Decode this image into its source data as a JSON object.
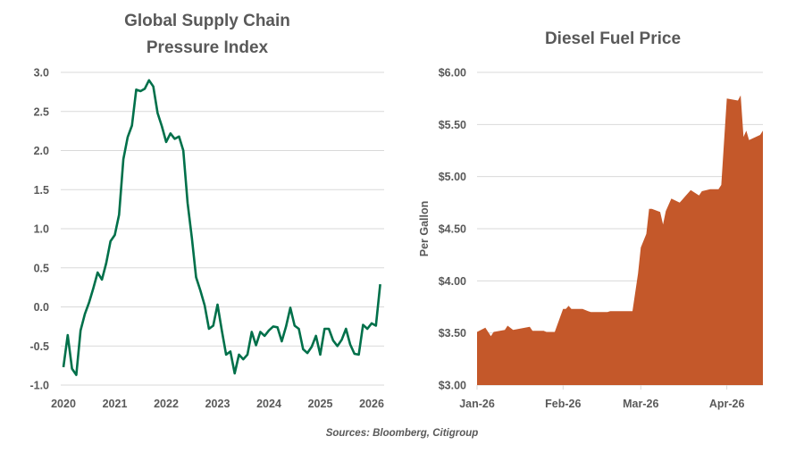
{
  "source": "Sources: Bloomberg, Citigroup",
  "colors": {
    "gscpi_line": "#00704A",
    "diesel_area": "#C4582A",
    "grid": "#D9D9D9",
    "text": "#595959"
  },
  "chart_data": [
    {
      "type": "line",
      "title_lines": [
        "Global Supply Chain",
        "Pressure Index"
      ],
      "xlabel": "",
      "ylabel": "",
      "ylim": [
        -1.0,
        3.0
      ],
      "yticks": [
        "3.0",
        "2.5",
        "2.0",
        "1.5",
        "1.0",
        "0.5",
        "0.0",
        "-0.5",
        "-1.0"
      ],
      "ytick_values": [
        3.0,
        2.5,
        2.0,
        1.5,
        1.0,
        0.5,
        0.0,
        -0.5,
        -1.0
      ],
      "xticks": [
        "2020",
        "2021",
        "2022",
        "2023",
        "2024",
        "2025",
        "2026"
      ],
      "xtick_values": [
        2020,
        2021,
        2022,
        2023,
        2024,
        2025,
        2026
      ],
      "xlim": [
        2020,
        2026.3
      ],
      "grid": "horizontal",
      "x_start": "2020-01",
      "frequency": "monthly",
      "values": [
        -0.77,
        -0.36,
        -0.79,
        -0.87,
        -0.3,
        -0.09,
        0.06,
        0.24,
        0.44,
        0.35,
        0.56,
        0.84,
        0.92,
        1.18,
        1.89,
        2.17,
        2.32,
        2.78,
        2.76,
        2.79,
        2.9,
        2.82,
        2.48,
        2.31,
        2.11,
        2.22,
        2.15,
        2.18,
        2.0,
        1.33,
        0.88,
        0.38,
        0.21,
        0.02,
        -0.28,
        -0.24,
        0.03,
        -0.3,
        -0.61,
        -0.57,
        -0.85,
        -0.61,
        -0.67,
        -0.61,
        -0.32,
        -0.49,
        -0.32,
        -0.37,
        -0.3,
        -0.25,
        -0.26,
        -0.44,
        -0.25,
        -0.01,
        -0.24,
        -0.28,
        -0.54,
        -0.59,
        -0.51,
        -0.37,
        -0.61,
        -0.28,
        -0.28,
        -0.43,
        -0.5,
        -0.42,
        -0.28,
        -0.48,
        -0.6,
        -0.61,
        -0.23,
        -0.28,
        -0.21,
        -0.24,
        0.29
      ]
    },
    {
      "type": "area",
      "title": "Diesel Fuel Price",
      "xlabel": "",
      "ylabel": "Per Gallon",
      "ylim": [
        3.0,
        6.0
      ],
      "yticks": [
        "$6.00",
        "$5.50",
        "$5.00",
        "$4.50",
        "$4.00",
        "$3.50",
        "$3.00"
      ],
      "ytick_values": [
        6.0,
        5.5,
        5.0,
        4.5,
        4.0,
        3.5,
        3.0
      ],
      "xticks": [
        "Jan-26",
        "Feb-26",
        "Mar-26",
        "Apr-26"
      ],
      "xtick_dates": [
        "2026-01-01",
        "2026-02-01",
        "2026-03-01",
        "2026-04-01"
      ],
      "xlim": [
        "2026-01-01",
        "2026-04-14"
      ],
      "grid": "horizontal",
      "x": [
        "2026-01-01",
        "2026-01-04",
        "2026-01-06",
        "2026-01-07",
        "2026-01-11",
        "2026-01-12",
        "2026-01-14",
        "2026-01-20",
        "2026-01-21",
        "2026-01-25",
        "2026-01-26",
        "2026-01-29",
        "2026-02-01",
        "2026-02-02",
        "2026-02-03",
        "2026-02-04",
        "2026-02-08",
        "2026-02-10",
        "2026-02-11",
        "2026-02-17",
        "2026-02-18",
        "2026-02-23",
        "2026-02-26",
        "2026-02-28",
        "2026-03-01",
        "2026-03-03",
        "2026-03-04",
        "2026-03-05",
        "2026-03-08",
        "2026-03-09",
        "2026-03-10",
        "2026-03-12",
        "2026-03-15",
        "2026-03-17",
        "2026-03-19",
        "2026-03-22",
        "2026-03-23",
        "2026-03-26",
        "2026-03-29",
        "2026-03-30",
        "2026-04-01",
        "2026-04-05",
        "2026-04-06",
        "2026-04-07",
        "2026-04-08",
        "2026-04-09",
        "2026-04-13",
        "2026-04-14"
      ],
      "values": [
        3.51,
        3.55,
        3.47,
        3.51,
        3.53,
        3.57,
        3.53,
        3.56,
        3.52,
        3.52,
        3.51,
        3.51,
        3.73,
        3.73,
        3.76,
        3.73,
        3.73,
        3.71,
        3.7,
        3.7,
        3.71,
        3.71,
        3.71,
        4.07,
        4.32,
        4.45,
        4.69,
        4.69,
        4.66,
        4.54,
        4.67,
        4.79,
        4.75,
        4.81,
        4.87,
        4.82,
        4.86,
        4.88,
        4.88,
        4.92,
        5.75,
        5.73,
        5.78,
        5.38,
        5.44,
        5.35,
        5.4,
        5.44
      ]
    }
  ]
}
